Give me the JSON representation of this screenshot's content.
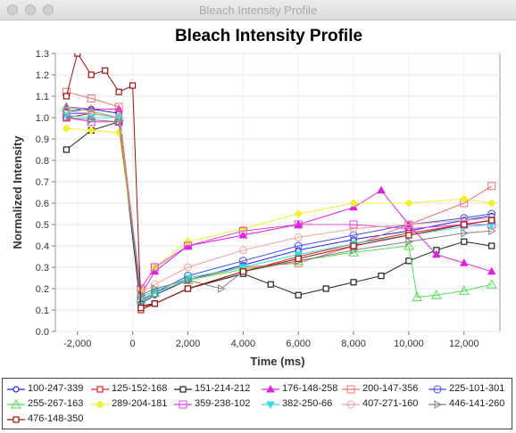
{
  "window": {
    "title": "Bleach Intensity Profile",
    "buttons": [
      "close",
      "minimize",
      "zoom"
    ]
  },
  "chart_data": {
    "type": "line",
    "title": "Bleach Intensity Profile",
    "xlabel": "Time (ms)",
    "ylabel": "Normalized Intensity",
    "xlim": [
      -2800,
      13300
    ],
    "ylim": [
      0,
      1.3
    ],
    "x_ticks": [
      "-2,000",
      "0",
      "2,000",
      "4,000",
      "6,000",
      "8,000",
      "10,000",
      "12,000"
    ],
    "y_ticks": [
      "0.0",
      "0.1",
      "0.2",
      "0.3",
      "0.4",
      "0.5",
      "0.6",
      "0.7",
      "0.8",
      "0.9",
      "1.0",
      "1.1",
      "1.2",
      "1.3"
    ],
    "grid": true,
    "legend_position": "bottom",
    "series": [
      {
        "name": "100-247-339",
        "color": "#2020d8",
        "marker": "circle",
        "x": [
          -2400,
          -1500,
          -500,
          300,
          800,
          2000,
          4000,
          6000,
          8000,
          10000,
          12000,
          13000
        ],
        "y": [
          1.03,
          1.04,
          1.02,
          0.13,
          0.17,
          0.24,
          0.31,
          0.38,
          0.43,
          0.47,
          0.52,
          0.54
        ]
      },
      {
        "name": "125-152-168",
        "color": "#e02020",
        "marker": "square",
        "x": [
          -2400,
          -1500,
          -500,
          300,
          800,
          2000,
          4000,
          6000,
          8000,
          10000,
          12000,
          13000
        ],
        "y": [
          1.0,
          1.02,
          1.0,
          0.1,
          0.13,
          0.2,
          0.28,
          0.35,
          0.41,
          0.46,
          0.5,
          0.52
        ]
      },
      {
        "name": "151-214-212",
        "color": "#202020",
        "marker": "square",
        "x": [
          -2400,
          -1500,
          -500,
          300,
          800,
          2000,
          4000,
          5000,
          6000,
          7000,
          8000,
          9000,
          10000,
          11000,
          12000,
          13000
        ],
        "y": [
          0.85,
          0.94,
          0.98,
          0.12,
          0.13,
          0.2,
          0.27,
          0.22,
          0.17,
          0.2,
          0.23,
          0.26,
          0.33,
          0.38,
          0.42,
          0.4
        ]
      },
      {
        "name": "176-148-258",
        "color": "#e020e0",
        "marker": "triangle",
        "x": [
          -2400,
          -1500,
          -500,
          300,
          800,
          2000,
          4000,
          6000,
          8000,
          9000,
          10000,
          11000,
          12000,
          13000
        ],
        "y": [
          1.05,
          1.04,
          1.04,
          0.17,
          0.28,
          0.4,
          0.45,
          0.5,
          0.58,
          0.66,
          0.5,
          0.36,
          0.32,
          0.28
        ]
      },
      {
        "name": "200-147-356",
        "color": "#f07070",
        "marker": "square-open",
        "x": [
          -2400,
          -1500,
          -500,
          300,
          800,
          2000,
          4000,
          6000,
          8000,
          10000,
          12000,
          13000
        ],
        "y": [
          1.12,
          1.09,
          1.05,
          0.15,
          0.18,
          0.24,
          0.3,
          0.32,
          0.4,
          0.5,
          0.6,
          0.68
        ]
      },
      {
        "name": "225-101-301",
        "color": "#4050f0",
        "marker": "circle-open",
        "x": [
          -2400,
          -1500,
          -500,
          300,
          800,
          2000,
          4000,
          6000,
          8000,
          10000,
          12000,
          13000
        ],
        "y": [
          1.02,
          1.02,
          1.0,
          0.14,
          0.18,
          0.26,
          0.33,
          0.4,
          0.45,
          0.5,
          0.53,
          0.55
        ]
      },
      {
        "name": "255-267-163",
        "color": "#50e050",
        "marker": "triangle-open",
        "x": [
          -2400,
          -1500,
          -500,
          300,
          800,
          2000,
          4000,
          6000,
          8000,
          10000,
          10300,
          11000,
          12000,
          13000
        ],
        "y": [
          1.05,
          1.03,
          1.0,
          0.15,
          0.18,
          0.24,
          0.29,
          0.33,
          0.37,
          0.4,
          0.16,
          0.17,
          0.19,
          0.22
        ]
      },
      {
        "name": "289-204-181",
        "color": "#f0f030",
        "marker": "diamond",
        "x": [
          -2400,
          -1500,
          -500,
          300,
          800,
          2000,
          4000,
          6000,
          8000,
          10000,
          12000,
          13000
        ],
        "y": [
          0.95,
          0.94,
          0.93,
          0.2,
          0.3,
          0.42,
          0.48,
          0.55,
          0.6,
          0.6,
          0.62,
          0.6
        ]
      },
      {
        "name": "359-238-102",
        "color": "#e040e0",
        "marker": "square-open",
        "x": [
          -2400,
          -1500,
          -500,
          300,
          800,
          2000,
          4000,
          6000,
          8000,
          10000,
          12000,
          13000
        ],
        "y": [
          1.0,
          0.98,
          0.98,
          0.2,
          0.3,
          0.4,
          0.47,
          0.5,
          0.5,
          0.48,
          0.5,
          0.5
        ]
      },
      {
        "name": "382-250-66",
        "color": "#30e0e0",
        "marker": "triangle-down",
        "x": [
          -2400,
          -1500,
          -500,
          300,
          800,
          2000,
          4000,
          6000,
          8000,
          10000,
          12000,
          13000
        ],
        "y": [
          1.01,
          1.0,
          1.0,
          0.16,
          0.19,
          0.25,
          0.3,
          0.36,
          0.41,
          0.45,
          0.49,
          0.5
        ]
      },
      {
        "name": "407-271-160",
        "color": "#f0a0a0",
        "marker": "circle-open",
        "x": [
          -2400,
          -1500,
          -500,
          300,
          800,
          2000,
          4000,
          6000,
          8000,
          10000,
          12000,
          13000
        ],
        "y": [
          1.03,
          1.02,
          1.0,
          0.18,
          0.22,
          0.3,
          0.38,
          0.44,
          0.48,
          0.5,
          0.52,
          0.53
        ]
      },
      {
        "name": "446-141-260",
        "color": "#808080",
        "marker": "triangle-right",
        "x": [
          -2400,
          -1500,
          -500,
          300,
          800,
          2000,
          3200,
          4000,
          6000,
          8000,
          10000,
          12000,
          13000
        ],
        "y": [
          1.0,
          0.99,
          0.98,
          0.17,
          0.2,
          0.24,
          0.2,
          0.28,
          0.33,
          0.38,
          0.42,
          0.46,
          0.47
        ]
      },
      {
        "name": "476-148-350",
        "color": "#a01010",
        "marker": "square",
        "x": [
          -2400,
          -2000,
          -1500,
          -1000,
          -500,
          0,
          300,
          800,
          2000,
          4000,
          6000,
          8000,
          10000,
          12000,
          13000
        ],
        "y": [
          1.1,
          1.3,
          1.2,
          1.22,
          1.12,
          1.15,
          0.11,
          0.13,
          0.2,
          0.28,
          0.34,
          0.4,
          0.45,
          0.5,
          0.52
        ]
      }
    ]
  }
}
